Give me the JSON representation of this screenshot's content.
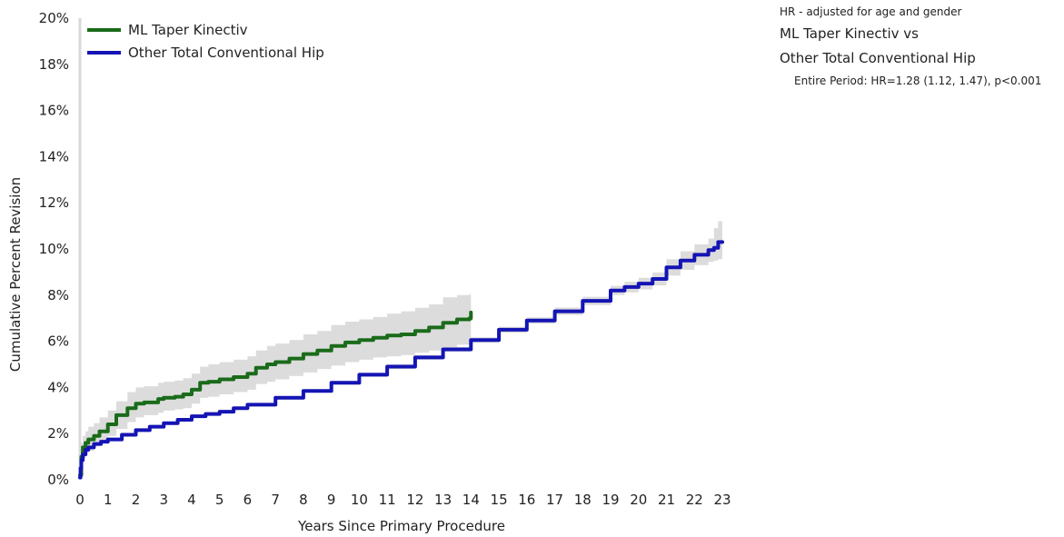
{
  "annotation": {
    "note": "HR - adjusted for age and gender",
    "comparison_line1": "ML Taper Kinectiv vs",
    "comparison_line2": "Other Total Conventional Hip",
    "period": "Entire Period: HR=1.28 (1.12, 1.47), p<0.001"
  },
  "chart_data": {
    "type": "line",
    "xlabel": "Years Since Primary Procedure",
    "ylabel": "Cumulative Percent Revision",
    "xlim": [
      0,
      23
    ],
    "ylim": [
      0,
      20
    ],
    "x_ticks": [
      0,
      1,
      2,
      3,
      4,
      5,
      6,
      7,
      8,
      9,
      10,
      11,
      12,
      13,
      14,
      15,
      16,
      17,
      18,
      19,
      20,
      21,
      22,
      23
    ],
    "y_ticks": [
      0,
      2,
      4,
      6,
      8,
      10,
      12,
      14,
      16,
      18,
      20
    ],
    "y_tick_suffix": "%",
    "grid": false,
    "legend_position": "top-left",
    "confidence_band_color": "#dcdcdc",
    "series": [
      {
        "name": "ML Taper Kinectiv",
        "color": "#1a6b1a",
        "x": [
          0,
          0.05,
          0.1,
          0.2,
          0.3,
          0.5,
          0.7,
          1.0,
          1.3,
          1.7,
          2.0,
          2.3,
          2.8,
          3.0,
          3.4,
          3.7,
          4.0,
          4.3,
          4.6,
          5.0,
          5.5,
          6.0,
          6.3,
          6.7,
          7.0,
          7.5,
          8.0,
          8.5,
          9.0,
          9.5,
          10.0,
          10.5,
          11.0,
          11.5,
          12.0,
          12.5,
          13.0,
          13.5,
          13.95,
          14.0
        ],
        "y": [
          0.2,
          1.0,
          1.4,
          1.6,
          1.75,
          1.9,
          2.1,
          2.4,
          2.8,
          3.1,
          3.3,
          3.35,
          3.5,
          3.55,
          3.6,
          3.7,
          3.9,
          4.2,
          4.25,
          4.35,
          4.45,
          4.6,
          4.85,
          5.0,
          5.1,
          5.25,
          5.45,
          5.6,
          5.8,
          5.95,
          6.05,
          6.15,
          6.25,
          6.3,
          6.45,
          6.6,
          6.8,
          6.95,
          7.0,
          7.25
        ],
        "ci_lower": [
          0,
          0.6,
          0.9,
          1.1,
          1.25,
          1.45,
          1.6,
          1.9,
          2.2,
          2.5,
          2.7,
          2.8,
          2.9,
          3.0,
          3.05,
          3.1,
          3.3,
          3.55,
          3.6,
          3.7,
          3.8,
          3.9,
          4.15,
          4.25,
          4.35,
          4.5,
          4.65,
          4.8,
          4.95,
          5.1,
          5.2,
          5.3,
          5.35,
          5.4,
          5.5,
          5.6,
          5.75,
          5.85,
          5.9,
          6.0
        ],
        "ci_upper": [
          0.6,
          1.6,
          1.9,
          2.1,
          2.3,
          2.45,
          2.7,
          3.0,
          3.4,
          3.8,
          4.0,
          4.05,
          4.2,
          4.25,
          4.3,
          4.4,
          4.6,
          4.9,
          5.0,
          5.1,
          5.2,
          5.35,
          5.6,
          5.8,
          5.9,
          6.05,
          6.3,
          6.45,
          6.7,
          6.85,
          6.95,
          7.05,
          7.2,
          7.3,
          7.45,
          7.6,
          7.9,
          8.0,
          8.05,
          8.5
        ]
      },
      {
        "name": "Other Total Conventional Hip",
        "color": "#1414b4",
        "x": [
          0,
          0.02,
          0.05,
          0.1,
          0.2,
          0.3,
          0.5,
          0.75,
          1.0,
          1.5,
          2.0,
          2.5,
          3.0,
          3.5,
          4.0,
          4.5,
          5.0,
          5.5,
          6.0,
          7.0,
          8.0,
          9.0,
          10.0,
          11.0,
          12.0,
          13.0,
          14.0,
          15.0,
          16.0,
          17.0,
          18.0,
          19.0,
          19.5,
          20.0,
          20.5,
          21.0,
          21.5,
          22.0,
          22.5,
          22.7,
          22.85,
          23.0
        ],
        "y": [
          0.1,
          0.5,
          0.85,
          1.1,
          1.3,
          1.4,
          1.55,
          1.65,
          1.75,
          1.95,
          2.15,
          2.3,
          2.45,
          2.6,
          2.75,
          2.85,
          2.95,
          3.1,
          3.25,
          3.55,
          3.85,
          4.2,
          4.55,
          4.9,
          5.3,
          5.65,
          6.05,
          6.5,
          6.9,
          7.3,
          7.75,
          8.2,
          8.35,
          8.5,
          8.7,
          9.2,
          9.5,
          9.75,
          9.95,
          10.05,
          10.3,
          10.3
        ],
        "ci_lower": [
          0.05,
          0.4,
          0.75,
          1.0,
          1.2,
          1.32,
          1.47,
          1.58,
          1.68,
          1.88,
          2.08,
          2.23,
          2.38,
          2.53,
          2.68,
          2.78,
          2.88,
          3.03,
          3.18,
          3.48,
          3.78,
          4.12,
          4.46,
          4.8,
          5.2,
          5.54,
          5.93,
          6.37,
          6.76,
          7.14,
          7.57,
          8.0,
          8.12,
          8.25,
          8.42,
          8.85,
          9.1,
          9.3,
          9.45,
          9.5,
          9.55,
          9.55
        ],
        "ci_upper": [
          0.15,
          0.6,
          0.95,
          1.2,
          1.4,
          1.48,
          1.63,
          1.72,
          1.82,
          2.02,
          2.22,
          2.37,
          2.52,
          2.67,
          2.82,
          2.92,
          3.02,
          3.17,
          3.32,
          3.62,
          3.92,
          4.28,
          4.64,
          5.0,
          5.4,
          5.76,
          6.17,
          6.63,
          7.04,
          7.46,
          7.93,
          8.4,
          8.58,
          8.75,
          8.98,
          9.55,
          9.9,
          10.2,
          10.45,
          10.9,
          11.2,
          11.2
        ]
      }
    ]
  }
}
